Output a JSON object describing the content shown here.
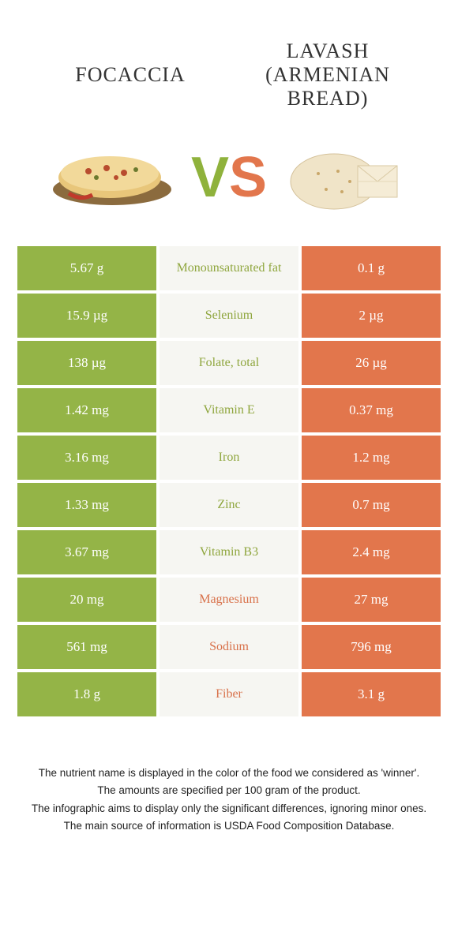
{
  "header": {
    "left_title": "FOCACCIA",
    "right_title": "LAVASH (ARMENIAN BREAD)"
  },
  "vs": {
    "v": "V",
    "s": "S"
  },
  "colors": {
    "green": "#94b447",
    "orange": "#e2764c",
    "mid_bg": "#f6f6f2",
    "txt_green": "#8fa63e",
    "txt_orange": "#d8714a"
  },
  "rows": [
    {
      "label": "Monounsaturated fat",
      "left": "5.67 g",
      "right": "0.1 g",
      "winner": "left"
    },
    {
      "label": "Selenium",
      "left": "15.9 µg",
      "right": "2 µg",
      "winner": "left"
    },
    {
      "label": "Folate, total",
      "left": "138 µg",
      "right": "26 µg",
      "winner": "left"
    },
    {
      "label": "Vitamin E",
      "left": "1.42 mg",
      "right": "0.37 mg",
      "winner": "left"
    },
    {
      "label": "Iron",
      "left": "3.16 mg",
      "right": "1.2 mg",
      "winner": "left"
    },
    {
      "label": "Zinc",
      "left": "1.33 mg",
      "right": "0.7 mg",
      "winner": "left"
    },
    {
      "label": "Vitamin B3",
      "left": "3.67 mg",
      "right": "2.4 mg",
      "winner": "left"
    },
    {
      "label": "Magnesium",
      "left": "20 mg",
      "right": "27 mg",
      "winner": "right"
    },
    {
      "label": "Sodium",
      "left": "561 mg",
      "right": "796 mg",
      "winner": "right"
    },
    {
      "label": "Fiber",
      "left": "1.8 g",
      "right": "3.1 g",
      "winner": "right"
    }
  ],
  "footnotes": [
    "The nutrient name is displayed in the color of the food we considered as 'winner'.",
    "The amounts are specified per 100 gram of the product.",
    "The infographic aims to display only the significant differences, ignoring minor ones.",
    "The main source of information is USDA Food Composition Database."
  ]
}
